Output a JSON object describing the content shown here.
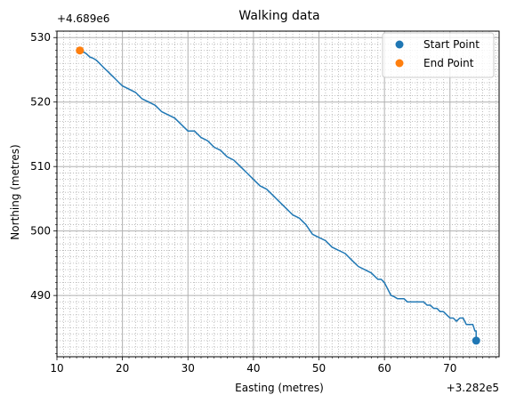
{
  "chart_data": {
    "type": "line",
    "title": "Walking data",
    "xlabel": "Easting (metres)",
    "ylabel": "Northing (metres)",
    "x_offset_label": "+3.282e5",
    "y_offset_label": "+4.689e6",
    "xlim": [
      10,
      77.5
    ],
    "ylim": [
      480.5,
      531
    ],
    "xticks": [
      10,
      20,
      30,
      40,
      50,
      60,
      70
    ],
    "yticks": [
      490,
      500,
      510,
      520,
      530
    ],
    "x_minor_step": 1,
    "y_minor_step": 1,
    "grid": true,
    "legend_position": "top-right",
    "series": [
      {
        "type": "line",
        "color": "#1f77b4",
        "x": [
          74.0,
          74.0,
          73.8,
          73.5,
          73.2,
          72.8,
          72.5,
          72.0,
          71.5,
          71.0,
          70.5,
          70.0,
          69.5,
          69.0,
          68.5,
          68.0,
          67.5,
          67.0,
          66.5,
          66.0,
          65.5,
          65.0,
          64.5,
          64.0,
          63.5,
          63.0,
          62.5,
          62.0,
          61.5,
          61.0,
          60.5,
          60.0,
          59.5,
          59.0,
          58.5,
          58.0,
          57.0,
          56.0,
          55.0,
          54.0,
          53.0,
          52.0,
          51.0,
          50.0,
          49.0,
          48.0,
          47.0,
          46.0,
          45.0,
          44.0,
          43.0,
          42.0,
          41.0,
          40.0,
          39.0,
          38.0,
          37.0,
          36.0,
          35.0,
          34.0,
          33.0,
          32.0,
          31.0,
          30.0,
          29.0,
          28.0,
          27.0,
          26.0,
          25.0,
          24.0,
          23.0,
          22.0,
          21.0,
          20.0,
          19.5,
          19.0,
          18.5,
          18.0,
          17.5,
          17.0,
          16.5,
          16.0,
          15.5,
          15.0,
          14.5,
          14.0,
          13.5
        ],
        "y": [
          483.0,
          484.5,
          484.5,
          485.5,
          485.5,
          485.5,
          485.5,
          486.5,
          486.5,
          486.0,
          486.5,
          486.5,
          487.0,
          487.5,
          487.5,
          488.0,
          488.0,
          488.5,
          488.5,
          489.0,
          489.0,
          489.0,
          489.0,
          489.0,
          489.0,
          489.5,
          489.5,
          489.5,
          489.8,
          490.0,
          491.0,
          492.0,
          492.5,
          492.5,
          493.0,
          493.5,
          494.0,
          494.5,
          495.5,
          496.5,
          497.0,
          497.5,
          498.5,
          499.0,
          499.5,
          501.0,
          502.0,
          502.5,
          503.5,
          504.5,
          505.5,
          506.5,
          507.0,
          508.0,
          509.0,
          510.0,
          511.0,
          511.5,
          512.5,
          513.0,
          514.0,
          514.5,
          515.5,
          515.5,
          516.5,
          517.5,
          518.0,
          518.5,
          519.5,
          520.0,
          520.5,
          521.5,
          522.0,
          522.5,
          523.0,
          523.5,
          524.0,
          524.5,
          525.0,
          525.5,
          526.0,
          526.5,
          526.8,
          527.0,
          527.5,
          527.8,
          528.0
        ]
      },
      {
        "name": "Start Point",
        "type": "scatter",
        "color": "#1f77b4",
        "x": [
          74.0
        ],
        "y": [
          483.0
        ]
      },
      {
        "name": "End Point",
        "type": "scatter",
        "color": "#ff7f0e",
        "x": [
          13.5
        ],
        "y": [
          528.0
        ]
      }
    ]
  }
}
